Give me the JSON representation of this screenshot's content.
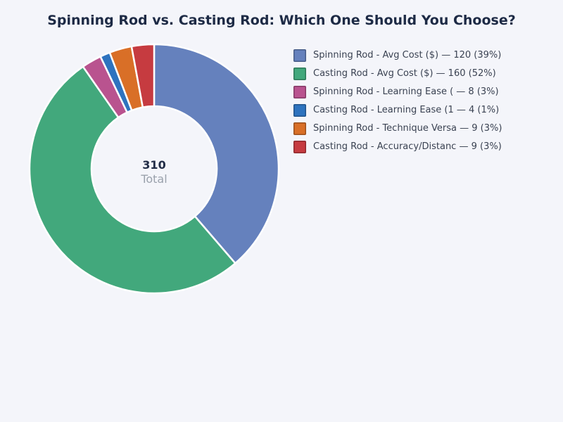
{
  "title": "Spinning Rod vs. Casting Rod: Which One Should You Choose?",
  "center_label": {
    "value": "310",
    "caption": "Total"
  },
  "colors": {
    "background": "#f4f5fa",
    "title_text": "#1d2a45",
    "legend_text": "#3a4252",
    "total_value_text": "#222d47",
    "total_caption_text": "#9aa1ac",
    "slice_gap": "#ffffff"
  },
  "chart_data": {
    "type": "pie",
    "subtype": "donut",
    "title": "Spinning Rod vs. Casting Rod: Which One Should You Choose?",
    "total": 310,
    "start_angle_deg": -90,
    "direction": "clockwise",
    "inner_radius_ratio": 0.5,
    "legend_position": "right",
    "center_text": [
      "310",
      "Total"
    ],
    "segments": [
      {
        "name": "Spinning Rod - Avg Cost ($)",
        "value": 120,
        "percent": 39,
        "color": "#6581bd",
        "legend_text": "Spinning Rod - Avg Cost ($) — 120 (39%)"
      },
      {
        "name": "Casting Rod - Avg Cost ($)",
        "value": 160,
        "percent": 52,
        "color": "#42a87c",
        "legend_text": "Casting Rod - Avg Cost ($) — 160 (52%)"
      },
      {
        "name": "Spinning Rod - Learning Ease (",
        "value": 8,
        "percent": 3,
        "color": "#b9538f",
        "legend_text": "Spinning Rod - Learning Ease ( — 8 (3%)"
      },
      {
        "name": "Casting Rod - Learning Ease (1",
        "value": 4,
        "percent": 1,
        "color": "#2e73bf",
        "legend_text": "Casting Rod - Learning Ease (1 — 4 (1%)"
      },
      {
        "name": "Spinning Rod - Technique Versa",
        "value": 9,
        "percent": 3,
        "color": "#d96f27",
        "legend_text": "Spinning Rod - Technique Versa — 9 (3%)"
      },
      {
        "name": "Casting Rod - Accuracy/Distanc",
        "value": 9,
        "percent": 3,
        "color": "#c63b40",
        "legend_text": "Casting Rod - Accuracy/Distanc — 9 (3%)"
      }
    ]
  }
}
